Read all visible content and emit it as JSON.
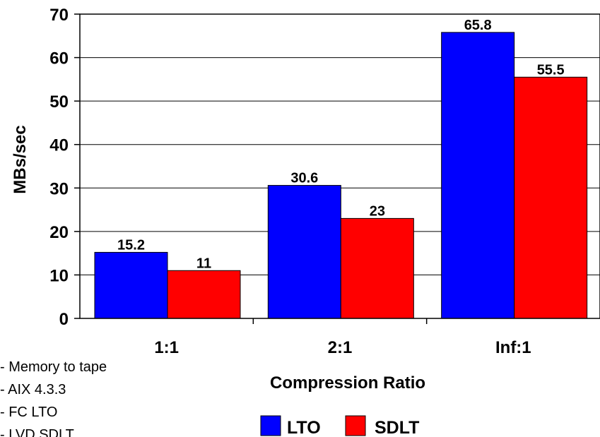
{
  "chart_data": {
    "type": "bar",
    "categories": [
      "1:1",
      "2:1",
      "Inf:1"
    ],
    "series": [
      {
        "name": "LTO",
        "color": "#0000ff",
        "values": [
          15.2,
          30.6,
          65.8
        ],
        "labels": [
          "15.2",
          "30.6",
          "65.8"
        ]
      },
      {
        "name": "SDLT",
        "color": "#ff0000",
        "values": [
          11,
          23,
          55.5
        ],
        "labels": [
          "11",
          "23",
          "55.5"
        ]
      }
    ],
    "title": "",
    "xlabel": "Compression Ratio",
    "ylabel": "MBs/sec",
    "ylim": [
      0,
      70
    ],
    "yticks": [
      "0",
      "10",
      "20",
      "30",
      "40",
      "50",
      "60",
      "70"
    ],
    "grid": true,
    "legend_position": "bottom-center",
    "notes": [
      "- Memory to tape",
      "- AIX 4.3.3",
      "- FC LTO",
      "- LVD SDLT"
    ]
  }
}
